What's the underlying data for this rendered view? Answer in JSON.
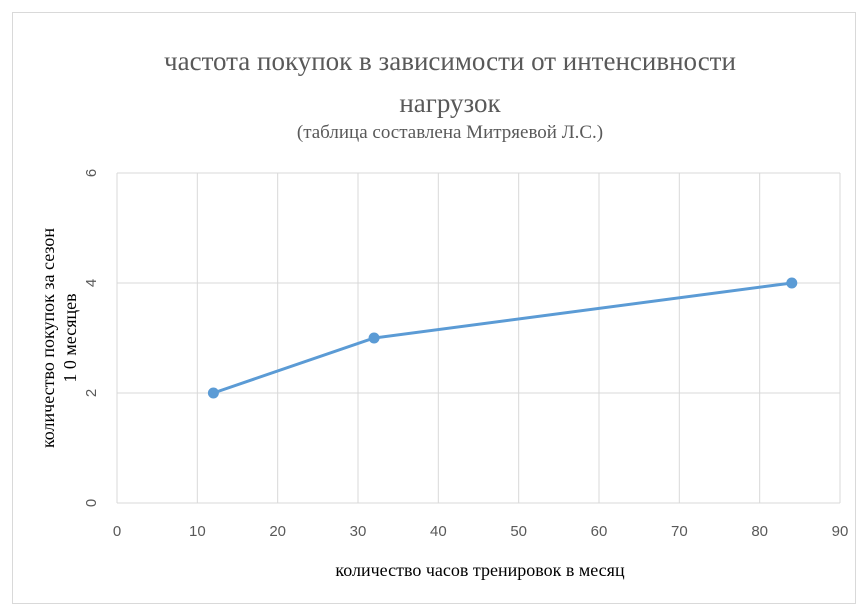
{
  "chart_data": {
    "type": "line",
    "title": "частота покупок в зависимости от интенсивности нагрузок",
    "subtitle": "(таблица составлена Митряевой Л.С.)",
    "x_label": "количество часов тренировок в месяц",
    "y_label": [
      "количество покупок за сезон",
      "1 0 месяцев"
    ],
    "x": [
      12,
      32,
      84
    ],
    "series": [
      {
        "name": "количество покупок",
        "color": "#5b9bd5",
        "values": [
          2,
          3,
          4
        ]
      }
    ],
    "xlim": [
      0,
      90
    ],
    "xticks": [
      0,
      10,
      20,
      30,
      40,
      50,
      60,
      70,
      80,
      90
    ],
    "ylim": [
      0,
      6
    ],
    "yticks": [
      0,
      2,
      4,
      6
    ],
    "grid": true,
    "markers": true
  }
}
